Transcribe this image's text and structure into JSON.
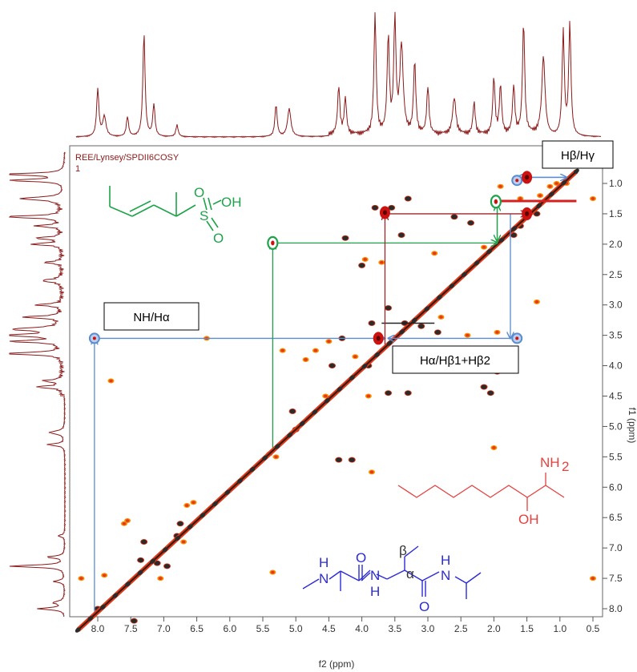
{
  "chart_data": {
    "type": "scatter",
    "dataset_label": "REE/Lynsey/SPDII6COSY",
    "dataset_sub": "1",
    "xlabel": "f2 (ppm)",
    "ylabel": "f1 (ppm)",
    "xlim": [
      8.3,
      0.45
    ],
    "ylim": [
      0.75,
      8.45
    ],
    "x_ticks": [
      "8.0",
      "7.5",
      "7.0",
      "6.5",
      "6.0",
      "5.5",
      "5.0",
      "4.5",
      "4.0",
      "3.5",
      "3.0",
      "2.5",
      "2.0",
      "1.5",
      "1.0",
      "0.5"
    ],
    "y_ticks": [
      "1.0",
      "1.5",
      "2.0",
      "2.5",
      "3.0",
      "3.5",
      "4.0",
      "4.5",
      "5.0",
      "5.5",
      "6.0",
      "6.5",
      "7.0",
      "7.5",
      "8.0"
    ],
    "diagonal": [
      [
        8.3,
        8.35
      ],
      [
        0.75,
        0.8
      ]
    ],
    "dark_peaks": [
      [
        3.8,
        1.4
      ],
      [
        3.55,
        1.4
      ],
      [
        3.3,
        1.25
      ],
      [
        2.6,
        1.55
      ],
      [
        2.35,
        1.65
      ],
      [
        4.25,
        1.9
      ],
      [
        3.4,
        1.85
      ],
      [
        4.0,
        2.35
      ],
      [
        3.6,
        3.05
      ],
      [
        3.35,
        3.3
      ],
      [
        3.1,
        3.35
      ],
      [
        2.85,
        3.45
      ],
      [
        4.3,
        3.55
      ],
      [
        2.55,
        3.75
      ],
      [
        2.25,
        3.95
      ],
      [
        1.95,
        4.1
      ],
      [
        3.6,
        4.45
      ],
      [
        3.3,
        4.45
      ],
      [
        2.15,
        4.35
      ],
      [
        4.45,
        4.0
      ],
      [
        2.05,
        4.45
      ],
      [
        3.9,
        4.0
      ],
      [
        4.35,
        5.55
      ],
      [
        4.15,
        5.55
      ],
      [
        5.0,
        5.05
      ],
      [
        5.05,
        4.75
      ],
      [
        7.35,
        7.2
      ],
      [
        7.1,
        7.25
      ],
      [
        6.95,
        7.3
      ],
      [
        7.3,
        6.9
      ],
      [
        6.75,
        6.6
      ],
      [
        6.8,
        6.8
      ],
      [
        7.45,
        8.2
      ],
      [
        8.0,
        8.0
      ],
      [
        1.7,
        1.85
      ],
      [
        1.6,
        1.7
      ],
      [
        1.35,
        1.5
      ],
      [
        3.85,
        3.3
      ]
    ],
    "red_peaks": [
      [
        1.15,
        1.05
      ],
      [
        1.05,
        1.0
      ],
      [
        0.9,
        1.0
      ],
      [
        1.9,
        1.05
      ],
      [
        1.6,
        1.25
      ],
      [
        1.3,
        1.2
      ],
      [
        2.15,
        2.05
      ],
      [
        2.9,
        2.15
      ],
      [
        3.7,
        2.3
      ],
      [
        3.95,
        2.25
      ],
      [
        0.5,
        1.25
      ],
      [
        1.35,
        2.95
      ],
      [
        2.8,
        3.2
      ],
      [
        4.5,
        3.6
      ],
      [
        4.7,
        3.75
      ],
      [
        4.85,
        3.9
      ],
      [
        2.4,
        3.5
      ],
      [
        1.95,
        3.45
      ],
      [
        3.4,
        3.95
      ],
      [
        4.55,
        4.5
      ],
      [
        3.9,
        4.5
      ],
      [
        7.9,
        7.45
      ],
      [
        8.25,
        7.5
      ],
      [
        7.6,
        6.6
      ],
      [
        7.55,
        6.55
      ],
      [
        6.65,
        6.3
      ],
      [
        6.55,
        6.25
      ],
      [
        6.7,
        6.9
      ],
      [
        7.05,
        7.5
      ],
      [
        5.35,
        7.4
      ],
      [
        7.8,
        4.25
      ],
      [
        6.35,
        3.55
      ],
      [
        5.4,
        5.45
      ],
      [
        5.3,
        5.5
      ],
      [
        2.0,
        5.35
      ],
      [
        5.2,
        3.75
      ],
      [
        0.5,
        7.5
      ],
      [
        3.85,
        5.75
      ],
      [
        4.1,
        3.85
      ]
    ],
    "correlations": [
      {
        "name": "NH/Hα",
        "color": "#5a8ccf",
        "from": [
          8.05,
          3.55
        ],
        "corner": [
          8.05,
          8.05
        ],
        "to": [
          3.65,
          3.55
        ]
      },
      {
        "name": "Hα/Hβ1+Hβ2",
        "color": "#5a8ccf",
        "from": [
          1.75,
          3.55
        ],
        "corner": [
          1.75,
          1.5
        ],
        "to": [
          3.6,
          3.55
        ]
      },
      {
        "name": "Hβ/Hγ",
        "color": "#5a8ccf",
        "from": [
          1.65,
          0.9
        ],
        "corner": [
          0.9,
          0.9
        ],
        "to": [
          0.9,
          0.9
        ]
      },
      {
        "name": "green",
        "color": "#1fa34a",
        "from": [
          5.35,
          1.98
        ],
        "corner": [
          5.35,
          5.35
        ],
        "to": [
          1.95,
          1.98
        ]
      },
      {
        "name": "green-2",
        "color": "#1fa34a",
        "from": [
          1.95,
          1.35
        ],
        "corner": [
          1.95,
          1.95
        ],
        "to": [
          1.95,
          1.95
        ]
      },
      {
        "name": "dark-red",
        "color": "#a0262b",
        "from": [
          3.65,
          1.5
        ],
        "corner": [
          3.65,
          3.65
        ],
        "to": [
          1.5,
          1.5
        ]
      }
    ],
    "markers": [
      {
        "x": 8.05,
        "y": 3.55,
        "color": "#5a8ccf",
        "kind": "blue"
      },
      {
        "x": 1.65,
        "y": 3.55,
        "color": "#5a8ccf",
        "kind": "blue"
      },
      {
        "x": 1.65,
        "y": 0.95,
        "color": "#5a8ccf",
        "kind": "blue"
      },
      {
        "x": 3.75,
        "y": 3.55,
        "color": "#cc1111",
        "kind": "red"
      },
      {
        "x": 3.65,
        "y": 1.48,
        "color": "#cc1111",
        "kind": "red"
      },
      {
        "x": 1.5,
        "y": 1.5,
        "color": "#cc1111",
        "kind": "red"
      },
      {
        "x": 1.5,
        "y": 0.9,
        "color": "#cc1111",
        "kind": "red"
      },
      {
        "x": 5.35,
        "y": 1.98,
        "color": "#1fa34a",
        "kind": "green"
      },
      {
        "x": 1.97,
        "y": 1.3,
        "color": "#1fa34a",
        "kind": "green"
      }
    ],
    "annotations": [
      "NH/Hα",
      "Hα/Hβ1+Hβ2",
      "Hβ/Hγ"
    ]
  },
  "structures": {
    "green": {
      "group1": "O",
      "group2": "S",
      "group3": "OH",
      "group4": "O",
      "color": "#1fa34a"
    },
    "red": {
      "nh2": "NH",
      "nh2_sub": "2",
      "oh": "OH",
      "color": "#e4413f"
    },
    "blue": {
      "h1": "H",
      "n1": "N",
      "o1": "O",
      "n2": "N",
      "h2": "H",
      "beta": "β",
      "alpha": "α",
      "o2": "O",
      "h3": "H",
      "n3": "N",
      "color": "#2b2bd6"
    }
  },
  "colors": {
    "spectrum": "#8b1a1a",
    "peak_dark": "#2b2b2b",
    "peak_red": "#e03a1a",
    "peak_orange": "#ff8c00"
  }
}
